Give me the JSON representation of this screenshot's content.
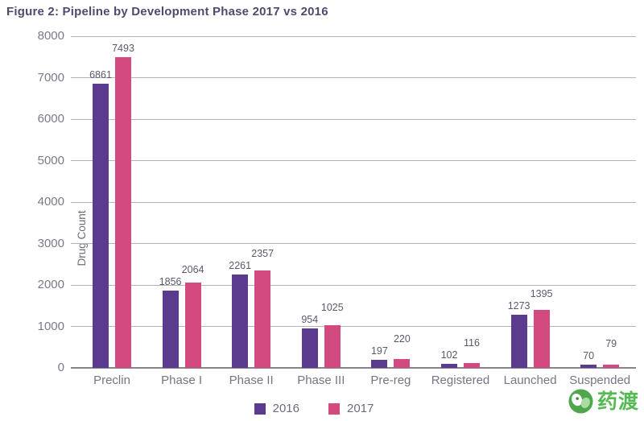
{
  "chart_data": {
    "type": "bar",
    "title": "Figure 2: Pipeline by Development Phase 2017 vs 2016",
    "xlabel": "",
    "ylabel": "Drug Count",
    "categories": [
      "Preclin",
      "Phase I",
      "Phase II",
      "Phase III",
      "Pre-reg",
      "Registered",
      "Launched",
      "Suspended"
    ],
    "series": [
      {
        "name": "2016",
        "color": "#5b3b8e",
        "values": [
          6861,
          1856,
          2261,
          954,
          197,
          102,
          1273,
          70
        ]
      },
      {
        "name": "2017",
        "color": "#d24a80",
        "values": [
          7493,
          2064,
          2357,
          1025,
          220,
          116,
          1395,
          79
        ]
      }
    ],
    "ylim": [
      0,
      8000
    ],
    "yticks": [
      0,
      1000,
      2000,
      3000,
      4000,
      5000,
      6000,
      7000,
      8000
    ],
    "grid": true,
    "legend_position": "bottom",
    "value_labels": true
  },
  "watermark": {
    "text": "药渡"
  },
  "colors": {
    "title": "#4f4a6e",
    "bar_2016": "#5b3b8e",
    "bar_2017": "#d24a80",
    "gridline": "#b3b2b6",
    "axis_line": "#85838b",
    "tick_text": "#7c7988",
    "value_label_text": "#5c576b",
    "watermark_green": "#4db74a"
  }
}
